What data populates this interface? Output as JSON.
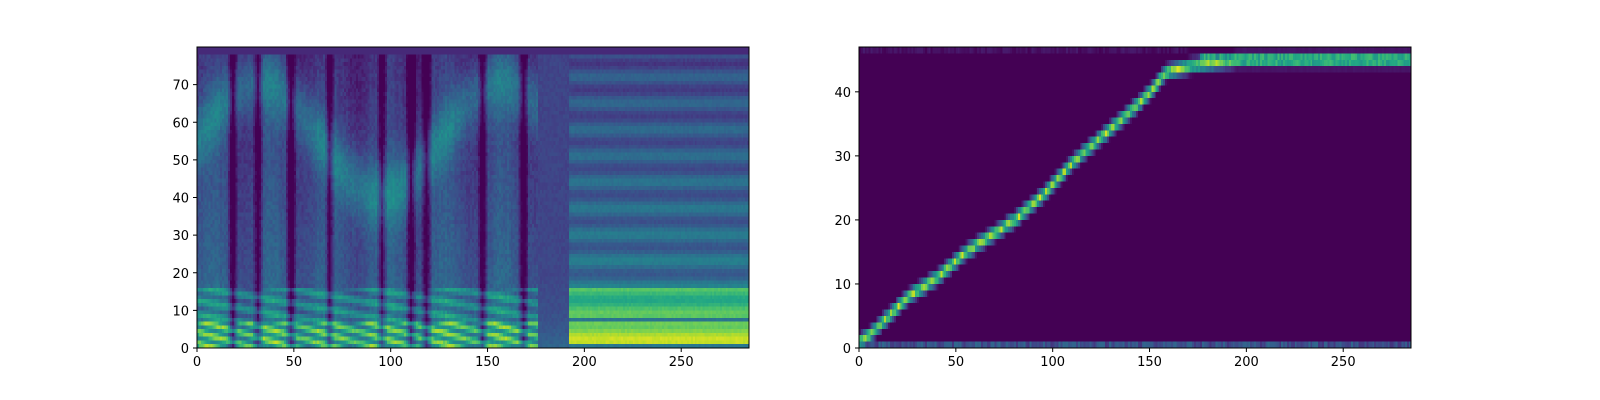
{
  "chart_data": [
    {
      "type": "heatmap",
      "title": "",
      "xlabel": "",
      "ylabel": "",
      "xlim": [
        0,
        285
      ],
      "ylim": [
        0,
        80
      ],
      "colormap": "viridis",
      "x_ticks": [
        0,
        50,
        100,
        150,
        200,
        250
      ],
      "x_tick_labels": [
        "0",
        "50",
        "100",
        "150",
        "200",
        "250"
      ],
      "y_ticks": [
        0,
        10,
        20,
        30,
        40,
        50,
        60,
        70
      ],
      "y_tick_labels": [
        "0",
        "10",
        "20",
        "30",
        "40",
        "50",
        "60",
        "70"
      ],
      "silence_ranges": [
        [
          176,
          192
        ],
        [
          192,
          285
        ]
      ],
      "bright_bands_y": [
        [
          1,
          6
        ],
        [
          8,
          14
        ]
      ],
      "onset_columns": [
        18,
        31,
        48,
        68,
        95,
        110,
        118,
        147,
        168
      ]
    },
    {
      "type": "heatmap",
      "title": "",
      "xlabel": "",
      "ylabel": "",
      "xlim": [
        0,
        285
      ],
      "ylim": [
        0,
        47
      ],
      "colormap": "viridis",
      "x_ticks": [
        0,
        50,
        100,
        150,
        200,
        250
      ],
      "x_tick_labels": [
        "0",
        "50",
        "100",
        "150",
        "200",
        "250"
      ],
      "y_ticks": [
        0,
        10,
        20,
        30,
        40
      ],
      "y_tick_labels": [
        "0",
        "10",
        "20",
        "30",
        "40"
      ],
      "alignment_path": [
        [
          0,
          1
        ],
        [
          5,
          2
        ],
        [
          15,
          5
        ],
        [
          25,
          8
        ],
        [
          40,
          11
        ],
        [
          55,
          15
        ],
        [
          65,
          17
        ],
        [
          80,
          20
        ],
        [
          95,
          24
        ],
        [
          110,
          29
        ],
        [
          125,
          33
        ],
        [
          140,
          37
        ],
        [
          150,
          40
        ],
        [
          158,
          43
        ],
        [
          170,
          44
        ],
        [
          195,
          45
        ],
        [
          285,
          45
        ]
      ]
    }
  ]
}
